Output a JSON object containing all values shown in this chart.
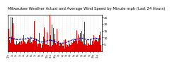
{
  "title": "Milwaukee Weather Actual and Average Wind Speed by Minute mph (Last 24 Hours)",
  "title_fontsize": 3.8,
  "background_color": "#ffffff",
  "plot_bg_color": "#ffffff",
  "grid_color": "#cccccc",
  "bar_color": "#dd0000",
  "line_color": "#0000bb",
  "ylim": [
    0,
    27
  ],
  "yticks": [
    5,
    10,
    15,
    20,
    25
  ],
  "n_points": 1440,
  "seed": 42
}
